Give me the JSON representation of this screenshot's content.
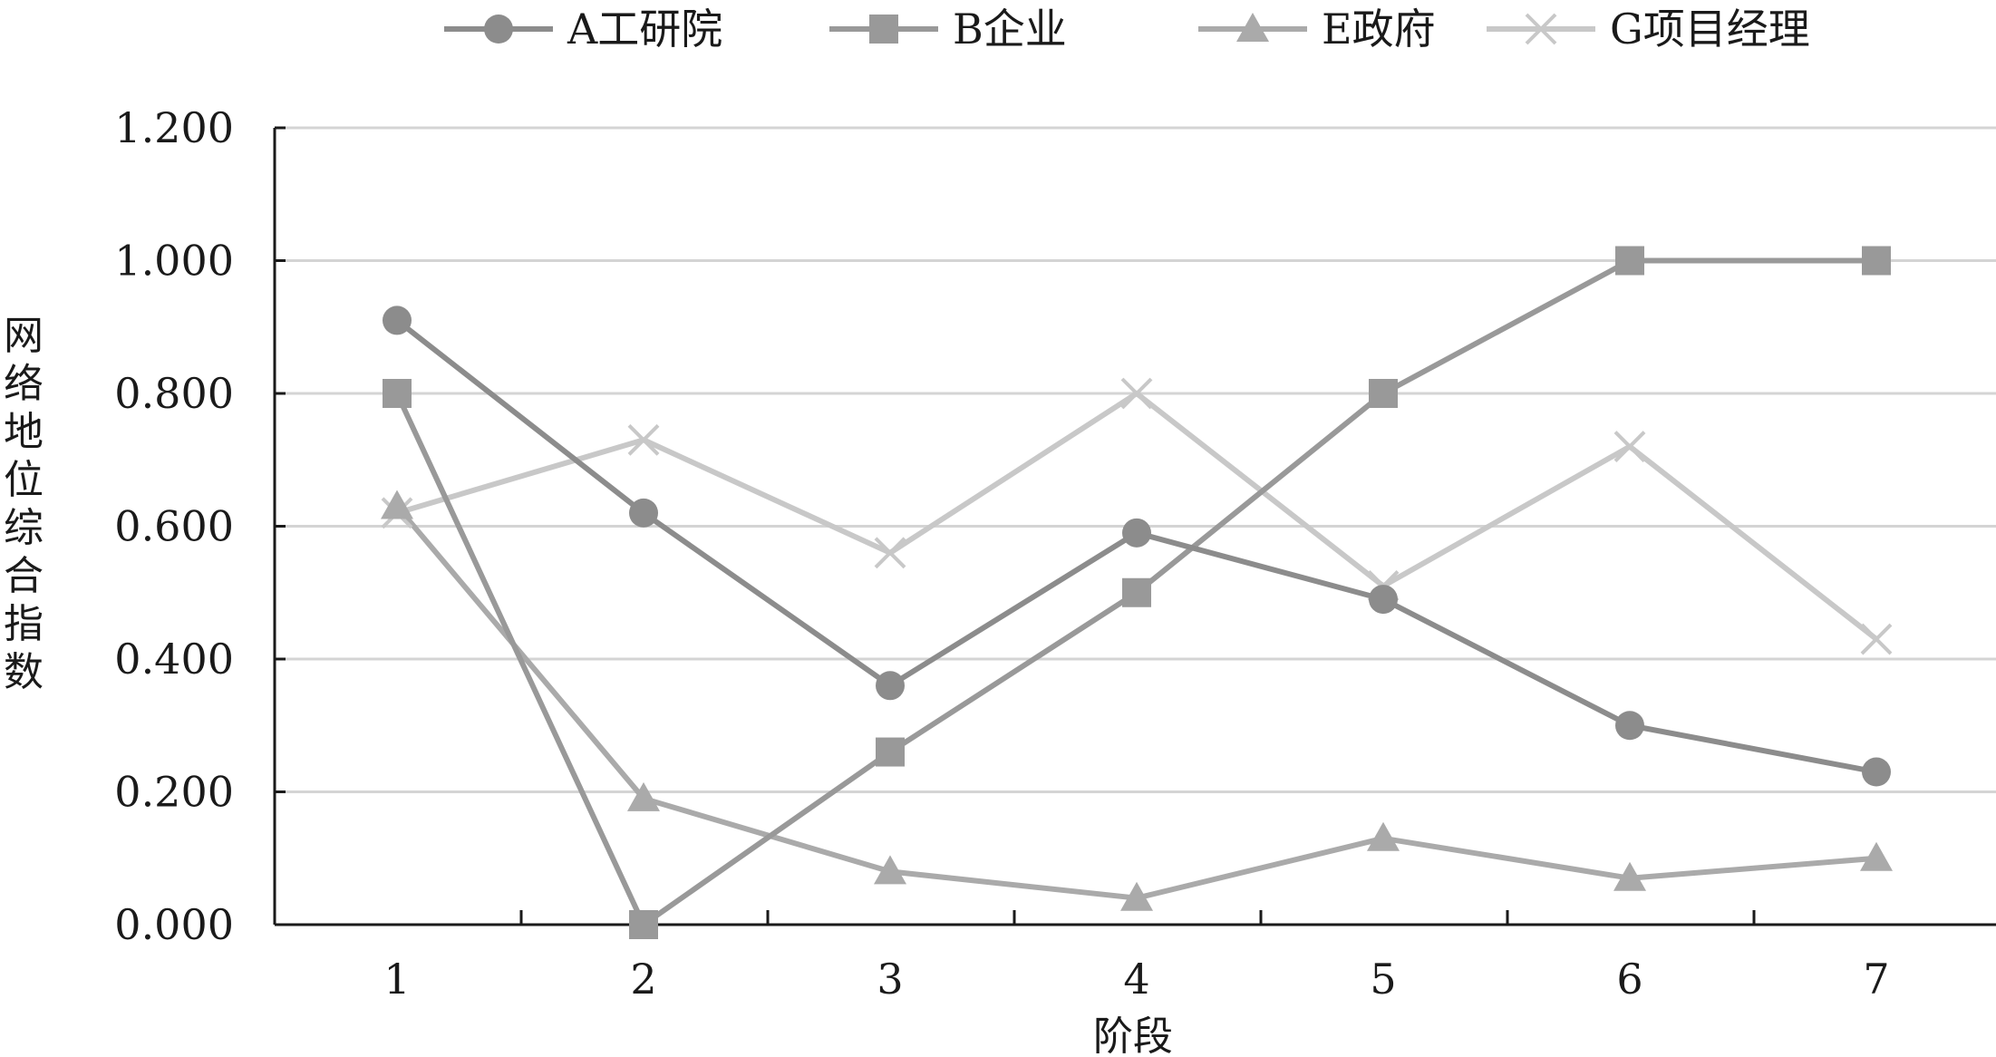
{
  "chart_data": {
    "type": "line",
    "xlabel": "阶段",
    "ylabel": "网络地位综合指数",
    "x": [
      1,
      2,
      3,
      4,
      5,
      6,
      7
    ],
    "xticks": [
      "1",
      "2",
      "3",
      "4",
      "5",
      "6",
      "7"
    ],
    "ylim": [
      0,
      1.2
    ],
    "yticks": [
      "0.000",
      "0.200",
      "0.400",
      "0.600",
      "0.800",
      "1.000",
      "1.200"
    ],
    "ytick_values": [
      0,
      0.2,
      0.4,
      0.6,
      0.8,
      1.0,
      1.2
    ],
    "grid": "horizontal",
    "legend_position": "top",
    "series": [
      {
        "name": "A工研院",
        "marker": "circle",
        "color": "#8c8c8c",
        "values": [
          0.91,
          0.62,
          0.36,
          0.59,
          0.49,
          0.3,
          0.23
        ]
      },
      {
        "name": "B企业",
        "marker": "square",
        "color": "#999999",
        "values": [
          0.8,
          0.0,
          0.26,
          0.5,
          0.8,
          1.0,
          1.0
        ]
      },
      {
        "name": "E政府",
        "marker": "triangle",
        "color": "#aaaaaa",
        "values": [
          0.63,
          0.19,
          0.08,
          0.04,
          0.13,
          0.07,
          0.1
        ]
      },
      {
        "name": "G项目经理",
        "marker": "x",
        "color": "#c8c8c8",
        "values": [
          0.62,
          0.73,
          0.56,
          0.8,
          0.51,
          0.72,
          0.43
        ]
      }
    ]
  }
}
